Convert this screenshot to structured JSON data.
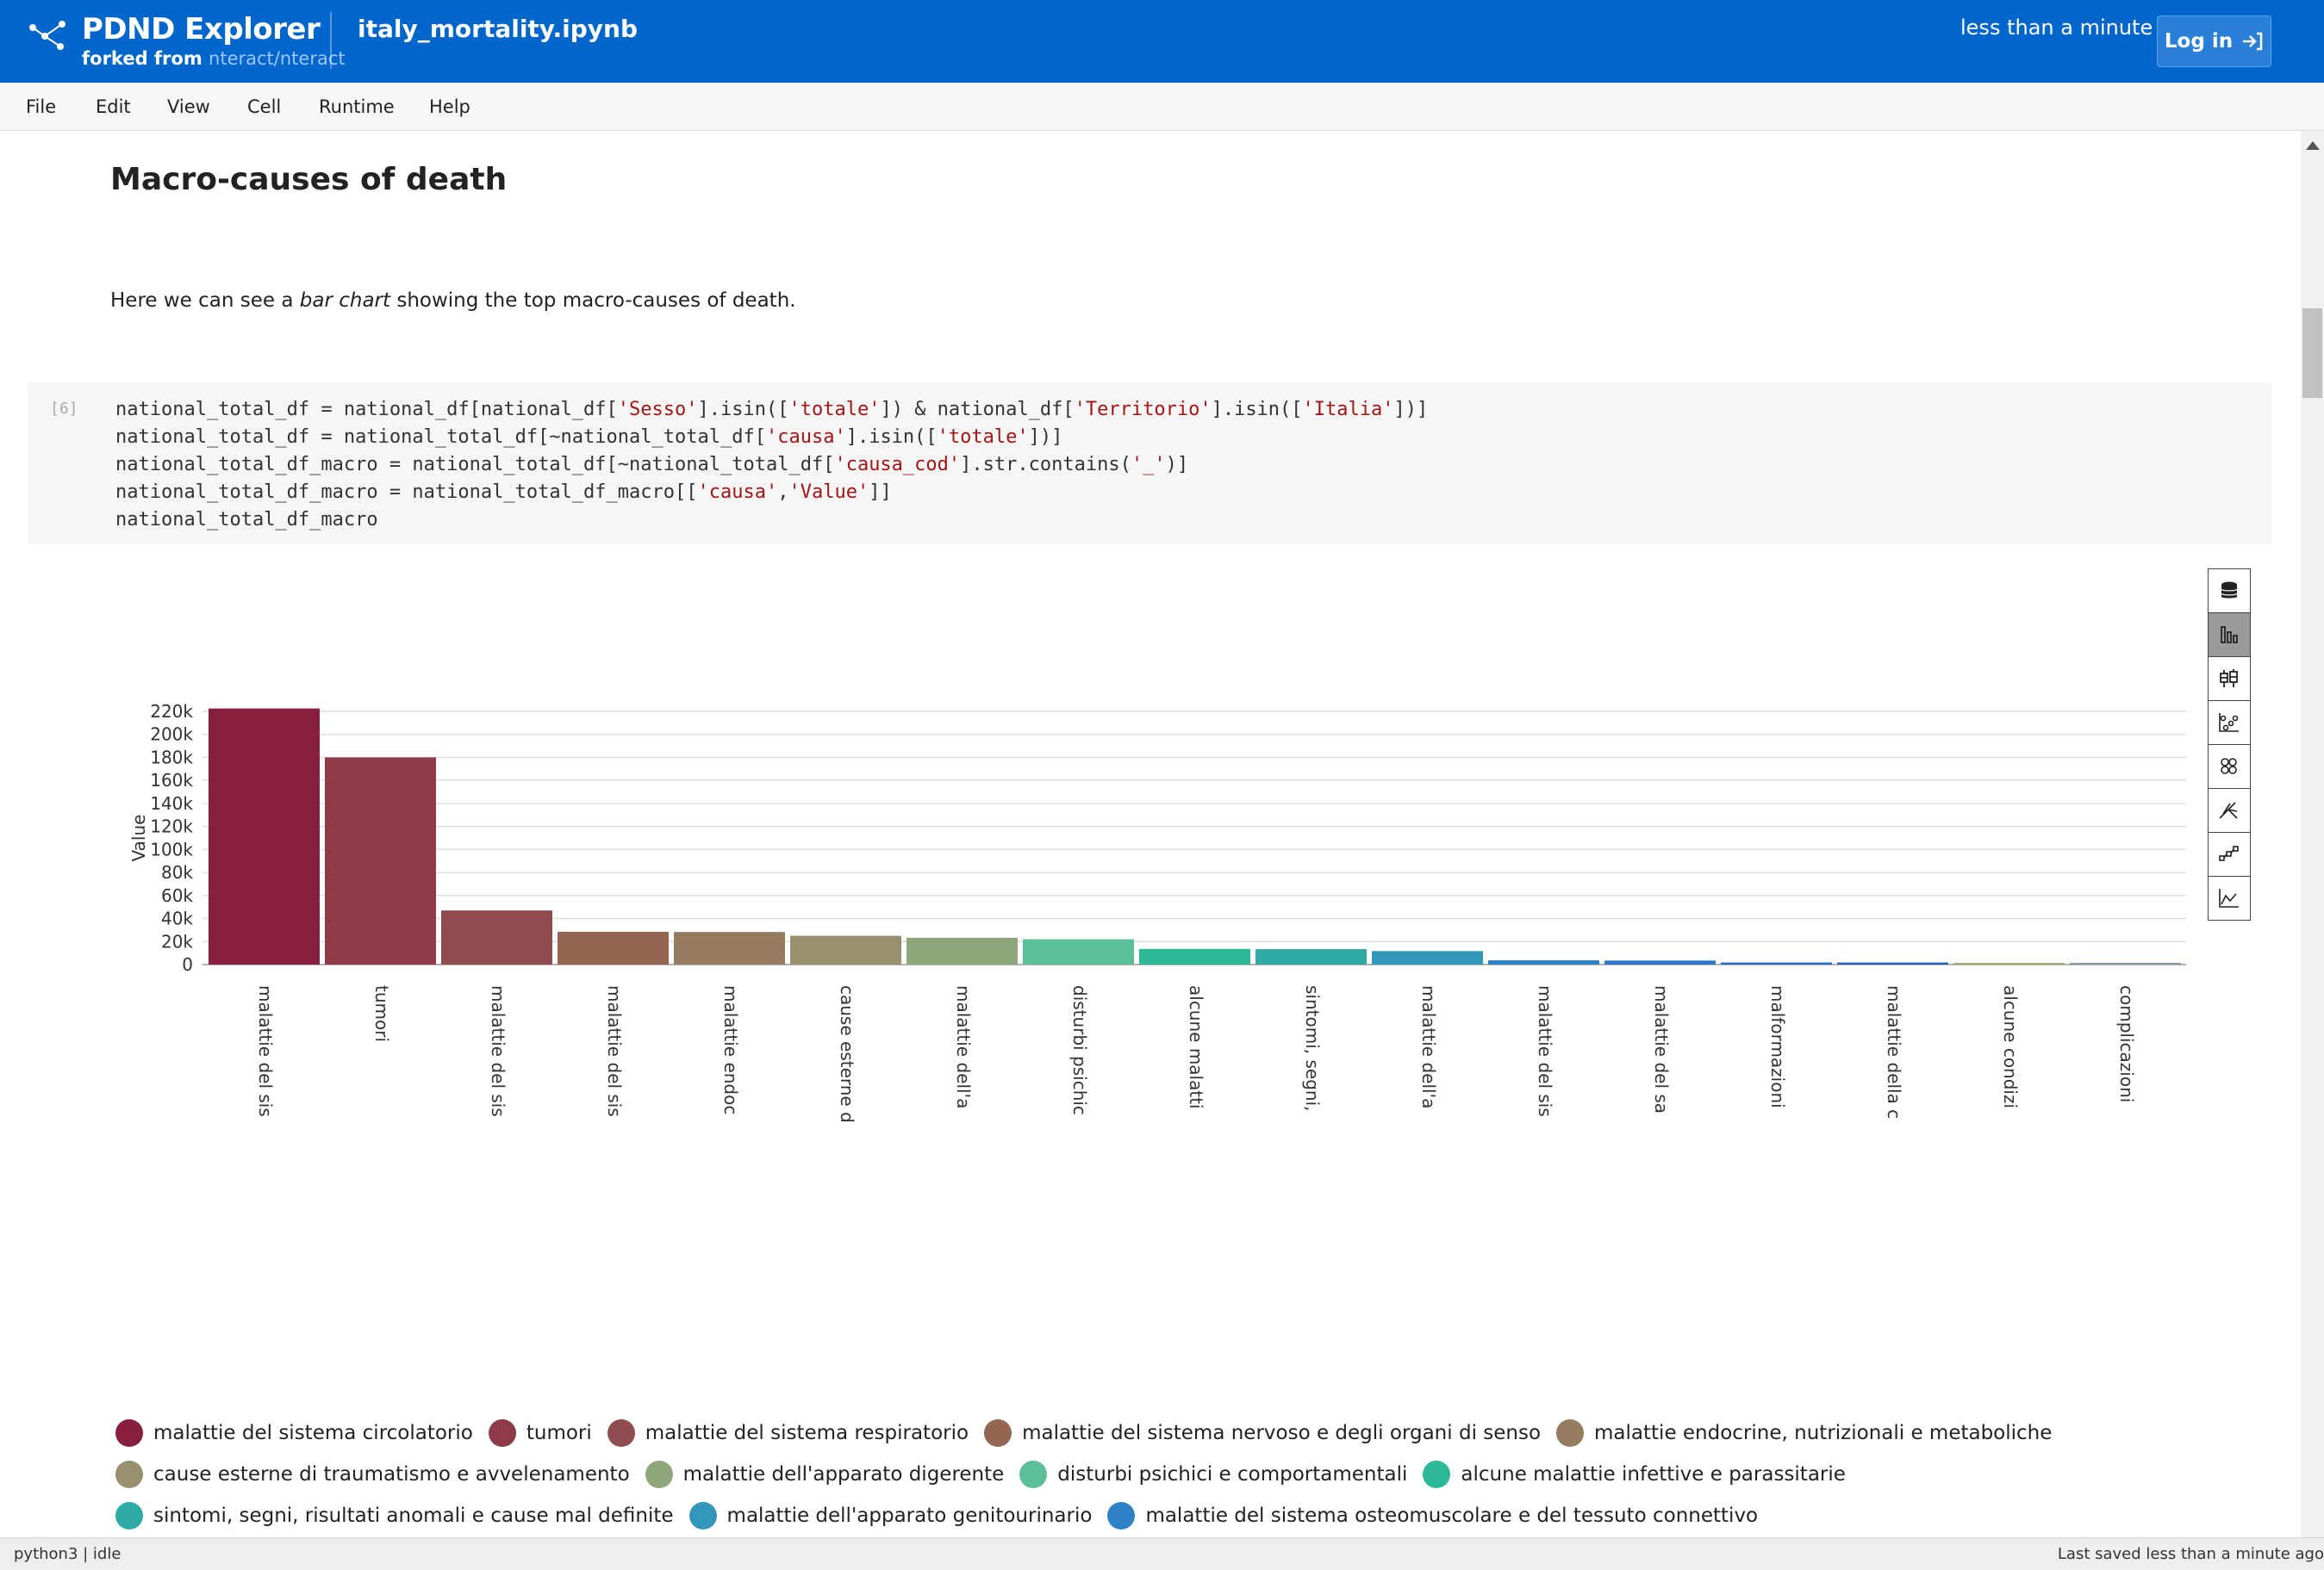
{
  "header": {
    "app_title": "PDND Explorer",
    "forked_prefix": "forked from",
    "forked_repo": "nteract/nteract",
    "notebook_name": "italy_mortality.ipynb",
    "saved": "less than a minute",
    "login_label": "Log in"
  },
  "menu": [
    "File",
    "Edit",
    "View",
    "Cell",
    "Runtime",
    "Help"
  ],
  "markdown": {
    "heading": "Macro-causes of death",
    "para_before": "Here we can see a ",
    "para_em": "bar chart",
    "para_after": " showing the top macro-causes of death."
  },
  "cell": {
    "prompt": "[6]",
    "lines": [
      [
        [
          "national_total_df = national_df[national_df[",
          ""
        ],
        [
          "'Sesso'",
          "s"
        ],
        [
          "].isin([",
          ""
        ],
        [
          "'totale'",
          "s"
        ],
        [
          "]) & national_df[",
          ""
        ],
        [
          "'Territorio'",
          "s"
        ],
        [
          "].isin([",
          ""
        ],
        [
          "'Italia'",
          "s"
        ],
        [
          "])]",
          ""
        ]
      ],
      [
        [
          "national_total_df = national_total_df[~national_total_df[",
          ""
        ],
        [
          "'causa'",
          "s"
        ],
        [
          "].isin([",
          ""
        ],
        [
          "'totale'",
          "s"
        ],
        [
          "])]",
          ""
        ]
      ],
      [
        [
          "national_total_df_macro = national_total_df[~national_total_df[",
          ""
        ],
        [
          "'causa_cod'",
          "s"
        ],
        [
          "].str.contains(",
          ""
        ],
        [
          "'_'",
          "s"
        ],
        [
          ")]",
          ""
        ]
      ],
      [
        [
          "national_total_df_macro = national_total_df_macro[[",
          ""
        ],
        [
          "'causa'",
          "s"
        ],
        [
          ",",
          ""
        ],
        [
          "'Value'",
          "s"
        ],
        [
          "]]",
          ""
        ]
      ],
      [
        [
          "national_total_df_macro",
          ""
        ]
      ]
    ]
  },
  "chart_data": {
    "type": "bar",
    "ylabel": "Value",
    "ylim": [
      0,
      220000
    ],
    "yticks": [
      "0",
      "20k",
      "40k",
      "60k",
      "80k",
      "100k",
      "120k",
      "140k",
      "160k",
      "180k",
      "200k",
      "220k"
    ],
    "grid": true,
    "legend_placement": "bottom",
    "categories": [
      "malattie del sistema circolatorio",
      "tumori",
      "malattie del sistema respiratorio",
      "malattie del sistema nervoso e degli organi di senso",
      "malattie endocrine, nutrizionali e metaboliche",
      "cause esterne di traumatismo e avvelenamento",
      "malattie dell'apparato digerente",
      "disturbi psichici e comportamentali",
      "alcune malattie infettive e parassitarie",
      "sintomi, segni, risultati anomali e cause mal definite",
      "malattie dell'apparato genitourinario",
      "malattie del sistema osteomuscolare e del tessuto connettivo",
      "malattie del sangue",
      "malformazioni",
      "malattie della cute",
      "alcune condizioni",
      "complicazioni"
    ],
    "tick_labels": [
      "malattie del sis",
      "tumori",
      "malattie del sis",
      "malattie del sis",
      "malattie endoc",
      "cause esterne d",
      "malattie dell'a",
      "disturbi psichic",
      "alcune malatti",
      "sintomi, segni,",
      "malattie dell'a",
      "malattie del sis",
      "malattie del sa",
      "malformazioni",
      "malattie della c",
      "alcune condizi",
      "complicazioni"
    ],
    "values": [
      222500,
      180000,
      47000,
      28500,
      28300,
      25000,
      23300,
      22000,
      13600,
      13400,
      11700,
      3700,
      3500,
      1800,
      1800,
      1300,
      300
    ],
    "colors": [
      "#87203e",
      "#8e3a49",
      "#8f4d4f",
      "#946755",
      "#957c5f",
      "#978f6e",
      "#8fa67b",
      "#5bbf98",
      "#2db898",
      "#31aaa7",
      "#3297b9",
      "#2e82c7",
      "#2e77c8",
      "#2b6bc6",
      "#2a62c2",
      "#a3ac6e",
      "#8c97a8"
    ],
    "legend": [
      [
        "malattie del sistema circolatorio",
        "tumori",
        "malattie del sistema respiratorio",
        "malattie del sistema nervoso e degli organi di senso",
        "malattie endocrine, nutrizionali e metaboliche"
      ],
      [
        "cause esterne di traumatismo e avvelenamento",
        "malattie dell'apparato digerente",
        "disturbi psichici e comportamentali",
        "alcune malattie infettive e parassitarie"
      ],
      [
        "sintomi, segni, risultati anomali e cause mal definite",
        "malattie dell'apparato genitourinario",
        "malattie del sistema osteomuscolare e del tessuto connettivo"
      ]
    ]
  },
  "toolbar": [
    "database-icon",
    "bar-chart-icon",
    "box-plot-icon",
    "scatter-icon",
    "hexbin-icon",
    "parallel-icon",
    "network-icon",
    "summary-icon"
  ],
  "status": {
    "kernel": "python3 | idle",
    "saved": "Last saved less than a minute ago"
  }
}
